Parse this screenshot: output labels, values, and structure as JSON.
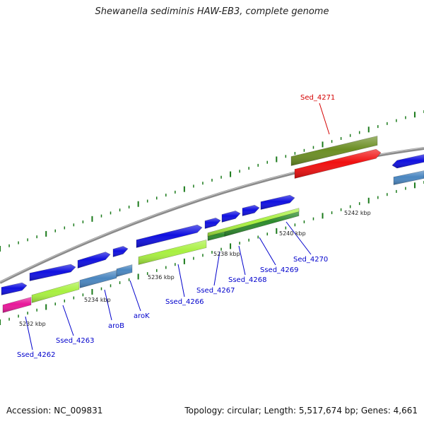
{
  "title": "Shewanella sediminis HAW-EB3, complete genome",
  "footer": {
    "accession": "Accession: NC_009831",
    "summary": "Topology: circular; Length: 5,517,674 bp; Genes: 4,661"
  },
  "colors": {
    "backbone": "#8a8a8a",
    "tick": "#1a7a1a",
    "label_default": "#0000cc",
    "label_highlight": "#d40000",
    "cds_blue": "#1010e0",
    "cds_steel": "#4a86c0",
    "cds_lime": "#a8f040",
    "cds_green": "#2e8b2e",
    "cds_pink": "#e8189a",
    "cds_olive": "#6b8e23",
    "cds_red": "#f01010"
  },
  "scale_labels": [
    "5232 kbp",
    "5234 kbp",
    "5236 kbp",
    "5238 kbp",
    "5240 kbp",
    "5242 kbp"
  ],
  "gene_labels": [
    {
      "text": "Ssed_4262",
      "color": "label_default"
    },
    {
      "text": "Ssed_4263",
      "color": "label_default"
    },
    {
      "text": "aroB",
      "color": "label_default"
    },
    {
      "text": "aroK",
      "color": "label_default"
    },
    {
      "text": "Ssed_4266",
      "color": "label_default"
    },
    {
      "text": "Ssed_4267",
      "color": "label_default"
    },
    {
      "text": "Ssed_4268",
      "color": "label_default"
    },
    {
      "text": "Ssed_4269",
      "color": "label_default"
    },
    {
      "text": "Sed_4270",
      "color": "label_default"
    },
    {
      "text": "Sed_4271",
      "color": "label_highlight"
    }
  ]
}
